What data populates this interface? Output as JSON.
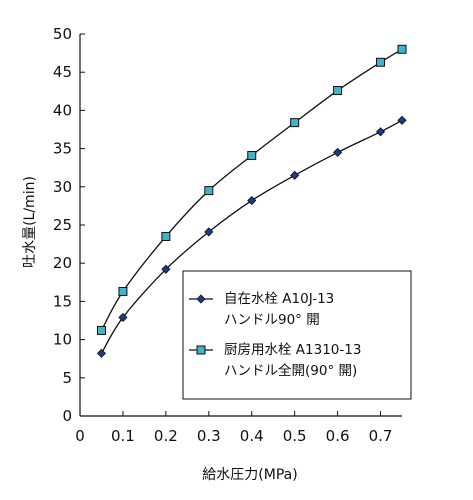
{
  "chart_data": {
    "type": "line",
    "title": "",
    "xlabel": "給水圧力(MPa)",
    "ylabel": "吐水量(L/min)",
    "xlim": [
      0,
      0.75
    ],
    "ylim": [
      0,
      50
    ],
    "x_ticks": [
      "0",
      "0.1",
      "0.2",
      "0.3",
      "0.4",
      "0.5",
      "0.6",
      "0.7"
    ],
    "y_ticks": [
      "0",
      "5",
      "10",
      "15",
      "20",
      "25",
      "30",
      "35",
      "40",
      "45",
      "50"
    ],
    "grid": false,
    "legend_position": "bottom-right",
    "series": [
      {
        "name": "自在水栓 A10J-13",
        "name_line2": "ハンドル90° 開",
        "marker": "diamond",
        "color": "#1f3a8a",
        "x": [
          0.05,
          0.1,
          0.2,
          0.3,
          0.4,
          0.5,
          0.6,
          0.7,
          0.75
        ],
        "y": [
          8.2,
          12.9,
          19.2,
          24.1,
          28.2,
          31.5,
          34.5,
          37.2,
          38.7
        ]
      },
      {
        "name": "厨房用水栓 A1310-13",
        "name_line2": "ハンドル全開(90° 開)",
        "marker": "square",
        "color": "#3fb6c8",
        "x": [
          0.05,
          0.1,
          0.2,
          0.3,
          0.4,
          0.5,
          0.6,
          0.7,
          0.75
        ],
        "y": [
          11.2,
          16.3,
          23.5,
          29.5,
          34.1,
          38.4,
          42.6,
          46.3,
          48.0
        ]
      }
    ]
  }
}
